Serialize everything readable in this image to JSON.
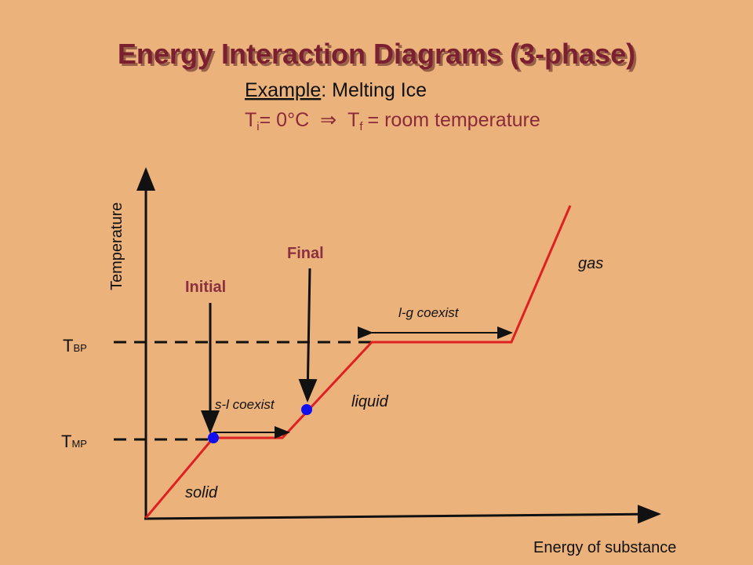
{
  "title": "Energy Interaction Diagrams (3-phase)",
  "example": {
    "label": "Example",
    "text": ": Melting Ice"
  },
  "condition": {
    "t1": "T",
    "sub1": "i",
    "eq1": "= 0°C",
    "arrow": "⇒",
    "t2": "T",
    "sub2": "f",
    "eq2": "= room temperature"
  },
  "axes": {
    "y_label": "Temperature",
    "x_label": "Energy of substance"
  },
  "levels": {
    "bp": {
      "t": "T",
      "sub": "BP"
    },
    "mp": {
      "t": "T",
      "sub": "MP"
    }
  },
  "labels": {
    "initial": "Initial",
    "final": "Final",
    "gas": "gas",
    "lg": "l-g coexist",
    "liquid": "liquid",
    "sl": "s-l coexist",
    "solid": "solid"
  }
}
